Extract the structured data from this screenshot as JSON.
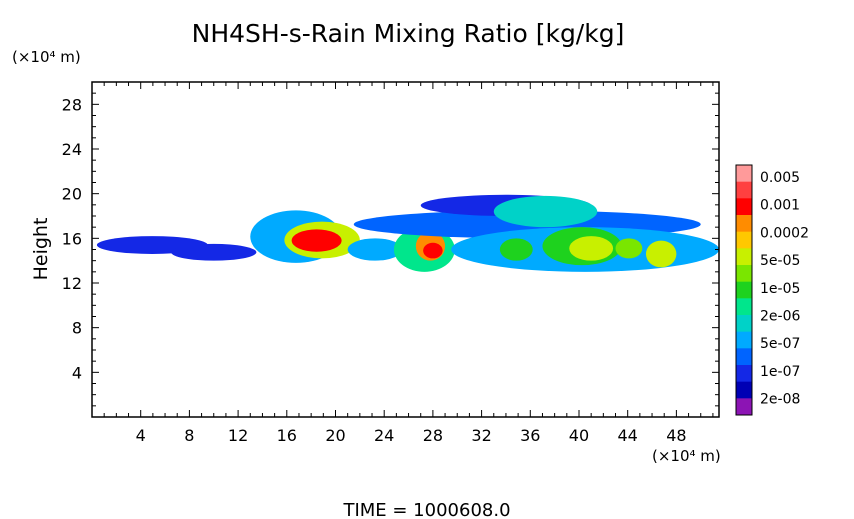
{
  "chart_data": {
    "type": "heatmap",
    "title": "NH4SH-s-Rain Mixing Ratio [kg/kg]",
    "ylabel": "Height",
    "yunit": "(×10⁴ m)",
    "xunit": "(×10⁴ m)",
    "footer": "TIME  =  1000608.0",
    "xlim": [
      0,
      51.5
    ],
    "ylim": [
      0,
      30
    ],
    "xticks": [
      4,
      8,
      12,
      16,
      20,
      24,
      28,
      32,
      36,
      40,
      44,
      48
    ],
    "yticks": [
      4,
      8,
      12,
      16,
      20,
      24,
      28
    ],
    "colorbar": {
      "labels": [
        "0.005",
        "0.001",
        "0.0002",
        "5e-05",
        "1e-05",
        "2e-06",
        "5e-07",
        "1e-07",
        "2e-08"
      ],
      "colors": [
        "#ff9a9a",
        "#ff4040",
        "#ff0000",
        "#ff8c00",
        "#ffc800",
        "#c8f000",
        "#7ae600",
        "#1ed21e",
        "#00e68c",
        "#00d2c8",
        "#00aaff",
        "#0064ff",
        "#1428e6",
        "#0000b4",
        "#8c14b4"
      ]
    },
    "blobs": [
      {
        "x": [
          0.4,
          9.5
        ],
        "y": [
          14.6,
          16.2
        ],
        "level": 2
      },
      {
        "x": [
          6.5,
          13.5
        ],
        "y": [
          14.0,
          15.5
        ],
        "level": 2
      },
      {
        "x": [
          13.0,
          20.5
        ],
        "y": [
          13.8,
          18.5
        ],
        "level": 4
      },
      {
        "x": [
          15.8,
          22.0
        ],
        "y": [
          14.2,
          17.5
        ],
        "level": 9
      },
      {
        "x": [
          16.4,
          20.5
        ],
        "y": [
          14.8,
          16.8
        ],
        "level": 12
      },
      {
        "x": [
          21.0,
          25.5
        ],
        "y": [
          14.0,
          16.0
        ],
        "level": 4
      },
      {
        "x": [
          24.8,
          29.8
        ],
        "y": [
          13.0,
          17.0
        ],
        "level": 6
      },
      {
        "x": [
          26.6,
          29.0
        ],
        "y": [
          14.0,
          16.6
        ],
        "level": 11
      },
      {
        "x": [
          27.2,
          28.8
        ],
        "y": [
          14.2,
          15.6
        ],
        "level": 12
      },
      {
        "x": [
          21.5,
          50.0
        ],
        "y": [
          16.0,
          18.5
        ],
        "level": 3
      },
      {
        "x": [
          27.0,
          41.0
        ],
        "y": [
          18.0,
          19.9
        ],
        "level": 2
      },
      {
        "x": [
          33.0,
          41.5
        ],
        "y": [
          17.0,
          19.8
        ],
        "level": 5
      },
      {
        "x": [
          29.5,
          51.5
        ],
        "y": [
          13.0,
          17.0
        ],
        "level": 4
      },
      {
        "x": [
          33.5,
          36.2
        ],
        "y": [
          14.0,
          16.0
        ],
        "level": 7
      },
      {
        "x": [
          37.0,
          43.5
        ],
        "y": [
          13.6,
          17.0
        ],
        "level": 7
      },
      {
        "x": [
          39.2,
          42.8
        ],
        "y": [
          14.0,
          16.2
        ],
        "level": 9
      },
      {
        "x": [
          43.0,
          45.2
        ],
        "y": [
          14.2,
          16.0
        ],
        "level": 8
      },
      {
        "x": [
          45.5,
          48.0
        ],
        "y": [
          13.4,
          15.8
        ],
        "level": 9
      }
    ]
  }
}
